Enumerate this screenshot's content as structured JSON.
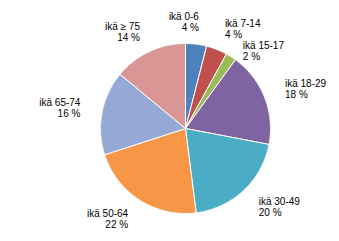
{
  "chart_data": {
    "type": "pie",
    "categories": [
      "ikä 0-6",
      "ikä 7-14",
      "ikä 15-17",
      "ikä 18-29",
      "ikä 30-49",
      "ikä 50-64",
      "ikä 65-74",
      "ikä ≥ 75"
    ],
    "values": [
      4,
      4,
      2,
      18,
      20,
      22,
      16,
      14
    ],
    "value_labels": [
      "4 %",
      "4 %",
      "2 %",
      "18 %",
      "20 %",
      "22 %",
      "16 %",
      "14 %"
    ],
    "colors": [
      "#4f81bd",
      "#c0504d",
      "#9bbb59",
      "#8064a2",
      "#4bacc6",
      "#f79646",
      "#95a9d6",
      "#d99694"
    ],
    "data_labels": true
  }
}
